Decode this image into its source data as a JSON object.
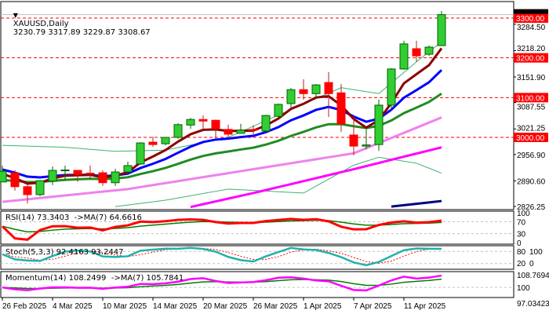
{
  "header": {
    "symbol": "XAUUSD,Daily",
    "ohlc": "3230.79 3317.89 3229.87 3308.67"
  },
  "price_axis": {
    "ticks": [
      "3284.50",
      "3218.20",
      "3151.90",
      "3087.55",
      "3021.25",
      "2956.90",
      "2890.60",
      "2826.25"
    ],
    "current_price": "3308.67"
  },
  "levels": [
    {
      "value": 3300,
      "label": "3300.00"
    },
    {
      "value": 3200,
      "label": "3200.00"
    },
    {
      "value": 3100,
      "label": "3100.00"
    },
    {
      "value": 3000,
      "label": "3000.00"
    }
  ],
  "colors": {
    "bull": "#32CD32",
    "bear": "#FF0000",
    "level": "#FF0000",
    "fast_ma": "#8B0000",
    "mid_ma": "#0000FF",
    "slow_ma": "#228B22",
    "band": "#3CB371",
    "ma_violet": "#EE82EE",
    "ma_magenta": "#FF00FF",
    "ma_navy": "#000080"
  },
  "candles": [
    [
      2888,
      2929,
      2888,
      2915
    ],
    [
      2911,
      2917,
      2866,
      2876
    ],
    [
      2876,
      2884,
      2834,
      2856
    ],
    [
      2856,
      2893,
      2852,
      2891
    ],
    [
      2890,
      2927,
      2880,
      2917
    ],
    [
      2916,
      2929,
      2893,
      2918
    ],
    [
      2917,
      2918,
      2888,
      2907
    ],
    [
      2910,
      2929,
      2895,
      2908
    ],
    [
      2911,
      2917,
      2878,
      2886
    ],
    [
      2886,
      2921,
      2878,
      2913
    ],
    [
      2913,
      2939,
      2911,
      2929
    ],
    [
      2933,
      2988,
      2931,
      2986
    ],
    [
      2988,
      3002,
      2976,
      2982
    ],
    [
      2984,
      3001,
      2980,
      3000
    ],
    [
      3000,
      3036,
      2996,
      3032
    ],
    [
      3031,
      3049,
      3022,
      3045
    ],
    [
      3045,
      3055,
      3020,
      3041
    ],
    [
      3043,
      3045,
      2998,
      3022
    ],
    [
      3020,
      3032,
      2998,
      3008
    ],
    [
      3010,
      3034,
      3010,
      3018
    ],
    [
      3020,
      3030,
      3008,
      3018
    ],
    [
      3016,
      3057,
      3014,
      3055
    ],
    [
      3053,
      3085,
      3049,
      3083
    ],
    [
      3085,
      3124,
      3075,
      3120
    ],
    [
      3120,
      3146,
      3095,
      3110
    ],
    [
      3110,
      3134,
      3100,
      3132
    ],
    [
      3138,
      3164,
      3051,
      3110
    ],
    [
      3112,
      3134,
      3014,
      3034
    ],
    [
      3006,
      3053,
      2955,
      2978
    ],
    [
      2978,
      3020,
      2970,
      2981
    ],
    [
      2982,
      3095,
      2966,
      3081
    ],
    [
      3081,
      3174,
      3069,
      3172
    ],
    [
      3172,
      3243,
      3170,
      3235
    ],
    [
      3223,
      3243,
      3190,
      3205
    ],
    [
      3209,
      3231,
      3205,
      3227
    ],
    [
      3230.79,
      3317.89,
      3229.87,
      3308.67
    ]
  ],
  "overlays": {
    "ma_violet": [
      [
        0,
        2838
      ],
      [
        10,
        2870
      ],
      [
        20,
        2920
      ],
      [
        28,
        2960
      ],
      [
        35,
        3050
      ]
    ],
    "ma_magenta": [
      [
        15,
        2825
      ],
      [
        20,
        2860
      ],
      [
        28,
        2920
      ],
      [
        35,
        2975
      ]
    ],
    "ma_navy": [
      [
        31,
        2826
      ],
      [
        35,
        2840
      ]
    ],
    "band_upper": [
      [
        0,
        2980
      ],
      [
        5,
        2975
      ],
      [
        9,
        2965
      ],
      [
        13,
        2968
      ],
      [
        18,
        3000
      ],
      [
        23,
        3070
      ],
      [
        27,
        3125
      ],
      [
        30,
        3110
      ],
      [
        33,
        3190
      ],
      [
        35,
        3240
      ]
    ],
    "band_lower": [
      [
        9,
        2826
      ],
      [
        13,
        2842
      ],
      [
        18,
        2870
      ],
      [
        24,
        2860
      ],
      [
        28,
        2930
      ],
      [
        30,
        2950
      ],
      [
        33,
        2935
      ],
      [
        35,
        2910
      ]
    ]
  },
  "x_axis": {
    "labels": [
      "26 Feb 2025",
      "4 Mar 2025",
      "10 Mar 2025",
      "14 Mar 2025",
      "20 Mar 2025",
      "26 Mar 2025",
      "1 Apr 2025",
      "7 Apr 2025",
      "11 Apr 2025"
    ]
  },
  "rsi": {
    "title": "RSI(14) 73.3403  ->MA(7) 64.6616",
    "axis": [
      "100",
      "70",
      "30",
      "0"
    ]
  },
  "stoch": {
    "title": "Stoch(5,3,3) 92.4163 93.2447",
    "axis": [
      "100",
      "80",
      "20",
      "0"
    ]
  },
  "momentum": {
    "title": "Momentum(14) 108.2499  ->MA(7) 105.7841",
    "axis": [
      "108.7694",
      "100",
      "97.03423"
    ]
  }
}
